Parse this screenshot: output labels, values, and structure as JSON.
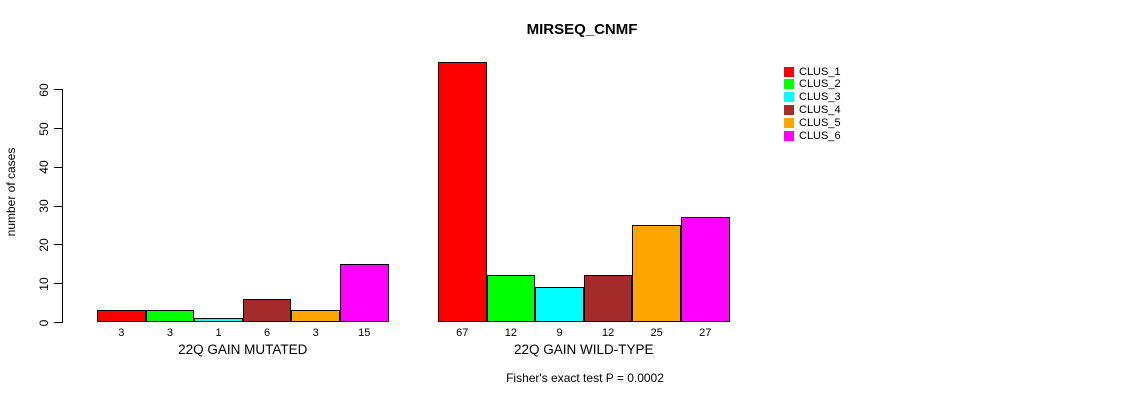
{
  "title": "MIRSEQ_CNMF",
  "footer": "Fisher's exact test P = 0.0002",
  "chart_data": {
    "type": "bar",
    "title": "MIRSEQ_CNMF",
    "xlabel": "",
    "ylabel": "number of cases",
    "ylim": [
      0,
      60
    ],
    "yticks": [
      0,
      10,
      20,
      30,
      40,
      50,
      60
    ],
    "grid": false,
    "legend_position": "right",
    "series": [
      {
        "name": "CLUS_1",
        "color": "#FF0000"
      },
      {
        "name": "CLUS_2",
        "color": "#00FF00"
      },
      {
        "name": "CLUS_3",
        "color": "#00FFFF"
      },
      {
        "name": "CLUS_4",
        "color": "#A52A2A"
      },
      {
        "name": "CLUS_5",
        "color": "#FFA500"
      },
      {
        "name": "CLUS_6",
        "color": "#FF00FF"
      }
    ],
    "groups": [
      {
        "label": "22Q GAIN MUTATED",
        "values": [
          3,
          3,
          1,
          6,
          3,
          15
        ]
      },
      {
        "label": "22Q GAIN WILD-TYPE",
        "values": [
          67,
          12,
          9,
          12,
          25,
          27
        ]
      }
    ],
    "annotation": "Fisher's exact test P = 0.0002",
    "bar_border_color": "#000000"
  }
}
